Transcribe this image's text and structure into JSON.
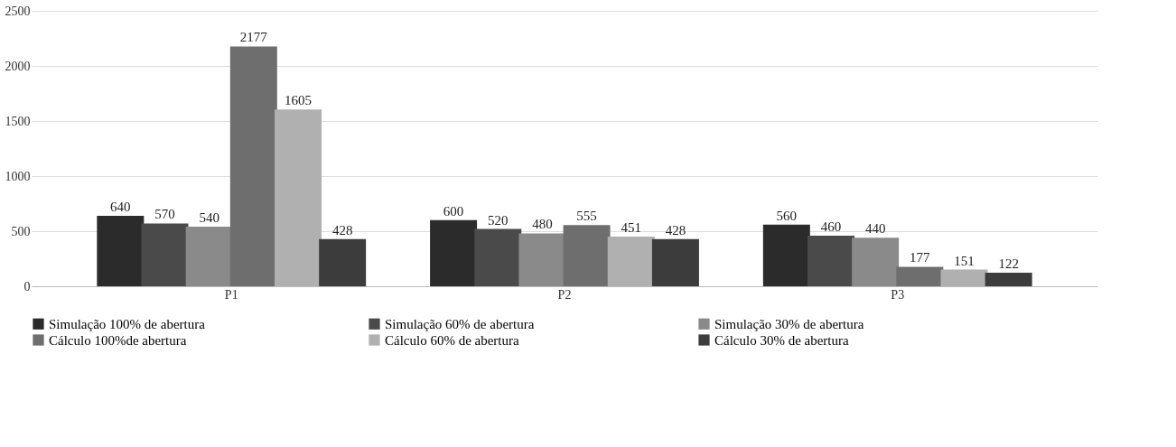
{
  "chart_data": {
    "type": "bar",
    "categories": [
      "P1",
      "P2",
      "P3"
    ],
    "series": [
      {
        "name": "Simulação 100% de abertura",
        "color": "#2b2b2b",
        "values": [
          640,
          600,
          560
        ]
      },
      {
        "name": "Simulação 60% de abertura",
        "color": "#4a4a4a",
        "values": [
          570,
          520,
          460
        ]
      },
      {
        "name": "Simulação 30% de abertura",
        "color": "#8a8a8a",
        "values": [
          540,
          480,
          440
        ]
      },
      {
        "name": "Cálculo 100%de abertura",
        "color": "#6e6e6e",
        "values": [
          2177,
          555,
          177
        ]
      },
      {
        "name": "Cálculo 60% de abertura",
        "color": "#b0b0b0",
        "values": [
          1605,
          451,
          151
        ]
      },
      {
        "name": "Cálculo 30% de abertura",
        "color": "#3c3c3c",
        "values": [
          428,
          428,
          122
        ]
      }
    ],
    "ylim": [
      0,
      2500
    ],
    "yticks": [
      0,
      500,
      1000,
      1500,
      2000,
      2500
    ],
    "grid": "y",
    "legend": "bottom",
    "data_labels": true
  }
}
